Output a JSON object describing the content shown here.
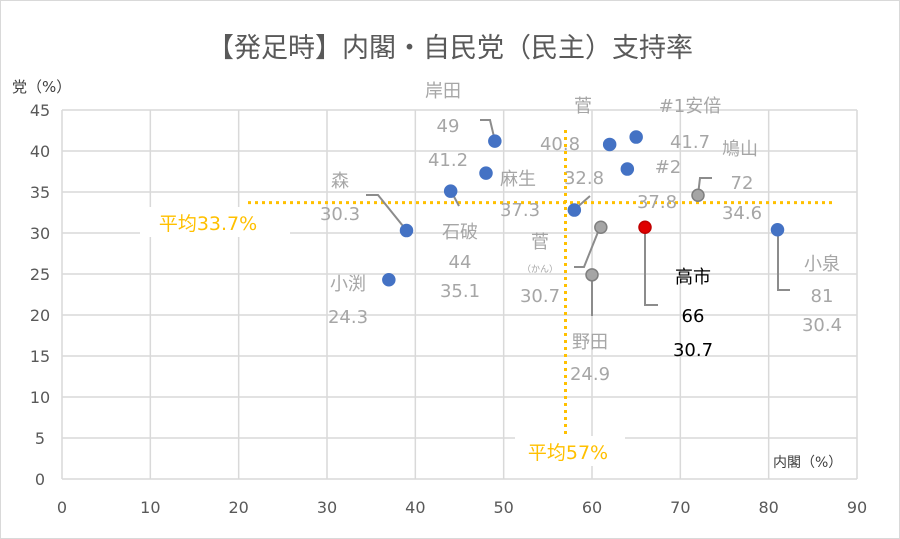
{
  "chart_data": {
    "type": "scatter",
    "title": "【発足時】内閣・自民党（民主）支持率",
    "xlabel": "内閣（%）",
    "ylabel": "党（%）",
    "xlim": [
      0,
      90
    ],
    "ylim": [
      0,
      45
    ],
    "xticks": [
      "0",
      "10",
      "20",
      "30",
      "40",
      "50",
      "60",
      "70",
      "80",
      "90"
    ],
    "yticks": [
      "0",
      "5",
      "10",
      "15",
      "20",
      "25",
      "30",
      "35",
      "40",
      "45"
    ],
    "grid": true,
    "colors": {
      "blue": "#4472C4",
      "gray": "#A5A5A5",
      "red": "#E00000",
      "label": "#A6A6A6",
      "avg": "#FFC000",
      "grid": "#D9D9D9"
    },
    "averages": {
      "y": 33.7,
      "x": 57,
      "y_label": "平均33.7%",
      "x_label": "平均57%"
    },
    "points": [
      {
        "name": "岸田",
        "x": 49,
        "y": 41.2,
        "color": "blue",
        "lx": "49",
        "ly": "41.2"
      },
      {
        "name": "菅",
        "x": 62,
        "y": 40.8,
        "color": "blue",
        "lx": "",
        "ly": "40.8"
      },
      {
        "name": "#1安倍",
        "x": 65,
        "y": 41.7,
        "color": "blue",
        "lx": "",
        "ly": "41.7"
      },
      {
        "name": "#2",
        "x": 64,
        "y": 37.8,
        "color": "blue",
        "lx": "",
        "ly": "37.8"
      },
      {
        "name": "麻生",
        "x": 48,
        "y": 37.3,
        "color": "blue",
        "lx": "",
        "ly": "37.3"
      },
      {
        "name": "",
        "x": 58,
        "y": 32.8,
        "color": "blue",
        "lx": "",
        "ly": "32.8"
      },
      {
        "name": "石破",
        "x": 44,
        "y": 35.1,
        "color": "blue",
        "lx": "44",
        "ly": "35.1"
      },
      {
        "name": "森",
        "x": 39,
        "y": 30.3,
        "color": "blue",
        "lx": "",
        "ly": "30.3"
      },
      {
        "name": "小渕",
        "x": 37,
        "y": 24.3,
        "color": "blue",
        "lx": "",
        "ly": "24.3"
      },
      {
        "name": "小泉",
        "x": 81,
        "y": 30.4,
        "color": "blue",
        "lx": "81",
        "ly": "30.4"
      },
      {
        "name": "鳩山",
        "x": 72,
        "y": 34.6,
        "color": "gray",
        "lx": "72",
        "ly": "34.6"
      },
      {
        "name": "菅",
        "sub": "（かん）",
        "x": 61,
        "y": 30.7,
        "color": "gray",
        "lx": "",
        "ly": "30.7"
      },
      {
        "name": "野田",
        "x": 60,
        "y": 24.9,
        "color": "gray",
        "lx": "",
        "ly": "24.9"
      },
      {
        "name": "高市",
        "x": 66,
        "y": 30.7,
        "color": "red",
        "lx": "66",
        "ly": "30.7"
      }
    ]
  }
}
